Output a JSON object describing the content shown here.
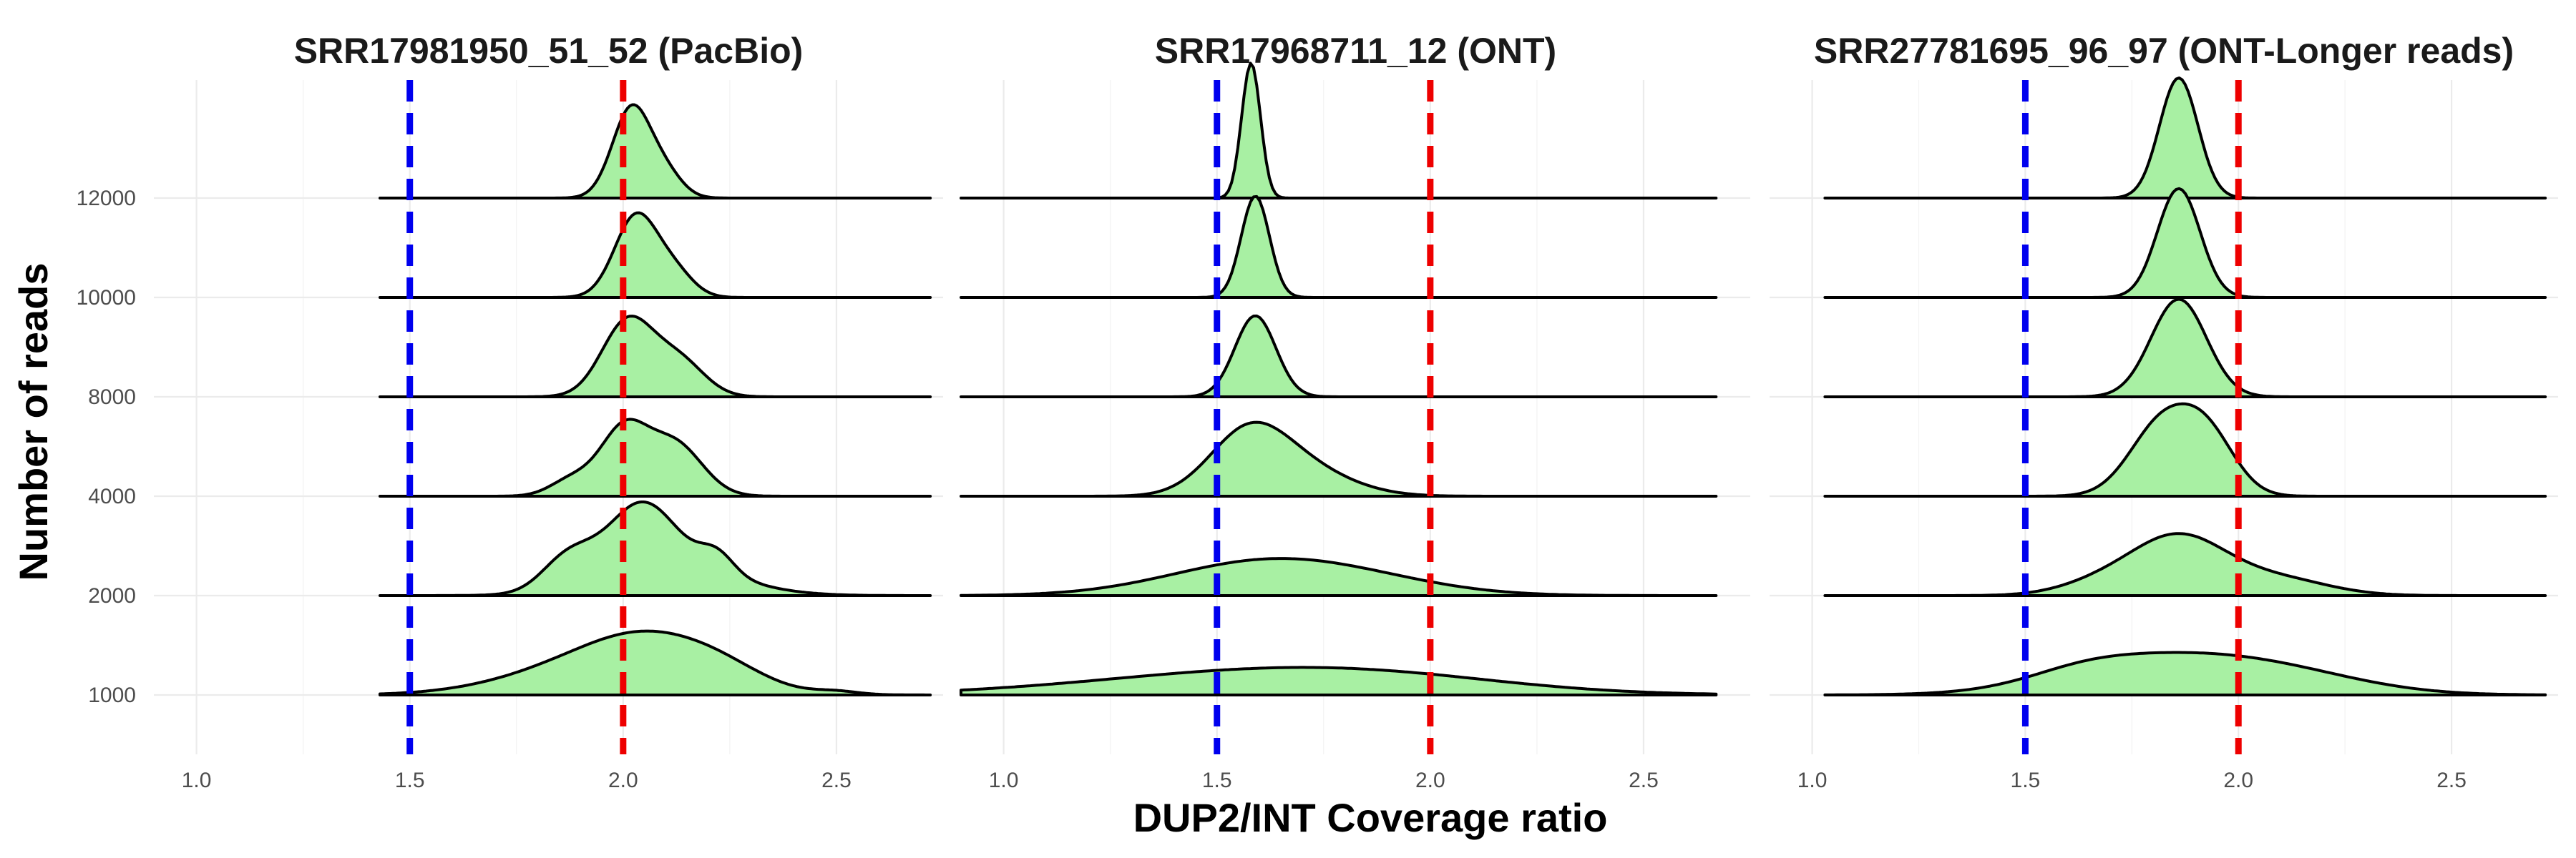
{
  "chart_data": {
    "type": "area",
    "subtype": "ridgeline-density",
    "xlabel": "DUP2/INT Coverage ratio",
    "ylabel": "Number of reads",
    "y_categories": [
      "1000",
      "2000",
      "4000",
      "8000",
      "10000",
      "12000"
    ],
    "x_ticks": [
      "1.0",
      "1.5",
      "2.0",
      "2.5"
    ],
    "fill_color": "#a8f0a3",
    "reference_lines": [
      {
        "x": 1.5,
        "color": "#0000ee",
        "style": "dashed"
      },
      {
        "x": 2.0,
        "color": "#ee0000",
        "style": "dashed"
      }
    ],
    "grid": true,
    "panels": [
      {
        "title": "SRR17981950_51_52 (PacBio)",
        "xlim": [
          0.9,
          2.75
        ],
        "x_range": [
          1.43,
          2.72
        ],
        "series": [
          {
            "reads": "1000",
            "peaks": [
              [
                1.96,
                0.2,
                0.48
              ],
              [
                2.08,
                0.14,
                0.4
              ],
              [
                2.24,
                0.1,
                0.16
              ],
              [
                2.5,
                0.05,
                0.04
              ]
            ]
          },
          {
            "reads": "2000",
            "peaks": [
              [
                1.87,
                0.06,
                0.42
              ],
              [
                2.04,
                0.08,
                0.88
              ],
              [
                2.22,
                0.04,
                0.26
              ],
              [
                2.11,
                0.15,
                0.4
              ]
            ]
          },
          {
            "reads": "4000",
            "peaks": [
              [
                2.0,
                0.055,
                0.86
              ],
              [
                2.12,
                0.065,
                0.7
              ],
              [
                1.88,
                0.05,
                0.22
              ]
            ]
          },
          {
            "reads": "8000",
            "peaks": [
              [
                2.01,
                0.06,
                1.0
              ],
              [
                2.13,
                0.06,
                0.48
              ]
            ]
          },
          {
            "reads": "10000",
            "peaks": [
              [
                2.03,
                0.05,
                1.08
              ],
              [
                2.12,
                0.045,
                0.32
              ]
            ]
          },
          {
            "reads": "12000",
            "peaks": [
              [
                2.02,
                0.045,
                1.2
              ],
              [
                2.1,
                0.04,
                0.3
              ]
            ]
          }
        ]
      },
      {
        "title": "SRR17968711_12 (ONT)",
        "xlim": [
          0.9,
          2.75
        ],
        "x_range": [
          0.9,
          2.67
        ],
        "series": [
          {
            "reads": "1000",
            "peaks": [
              [
                1.6,
                0.4,
                0.3
              ],
              [
                1.92,
                0.3,
                0.1
              ]
            ]
          },
          {
            "reads": "2000",
            "peaks": [
              [
                1.6,
                0.22,
                0.42
              ],
              [
                1.85,
                0.2,
                0.14
              ]
            ]
          },
          {
            "reads": "4000",
            "peaks": [
              [
                1.57,
                0.09,
                0.7
              ],
              [
                1.68,
                0.12,
                0.4
              ]
            ]
          },
          {
            "reads": "8000",
            "peaks": [
              [
                1.59,
                0.048,
                1.08
              ]
            ]
          },
          {
            "reads": "10000",
            "peaks": [
              [
                1.59,
                0.033,
                1.35
              ]
            ]
          },
          {
            "reads": "12000",
            "peaks": [
              [
                1.58,
                0.022,
                1.8
              ]
            ]
          }
        ]
      },
      {
        "title": "SRR27781695_96_97 (ONT-Longer reads)",
        "xlim": [
          0.9,
          2.75
        ],
        "x_range": [
          1.03,
          2.72
        ],
        "series": [
          {
            "reads": "1000",
            "peaks": [
              [
                1.8,
                0.22,
                0.44
              ],
              [
                2.1,
                0.2,
                0.26
              ],
              [
                1.63,
                0.12,
                0.1
              ]
            ]
          },
          {
            "reads": "2000",
            "peaks": [
              [
                1.86,
                0.11,
                0.76
              ],
              [
                2.09,
                0.12,
                0.22
              ],
              [
                1.68,
                0.1,
                0.16
              ]
            ]
          },
          {
            "reads": "4000",
            "peaks": [
              [
                1.82,
                0.075,
                0.95
              ],
              [
                1.93,
                0.065,
                0.72
              ]
            ]
          },
          {
            "reads": "8000",
            "peaks": [
              [
                1.86,
                0.065,
                1.3
              ]
            ]
          },
          {
            "reads": "10000",
            "peaks": [
              [
                1.86,
                0.05,
                1.45
              ]
            ]
          },
          {
            "reads": "12000",
            "peaks": [
              [
                1.86,
                0.045,
                1.6
              ]
            ]
          }
        ]
      }
    ]
  }
}
